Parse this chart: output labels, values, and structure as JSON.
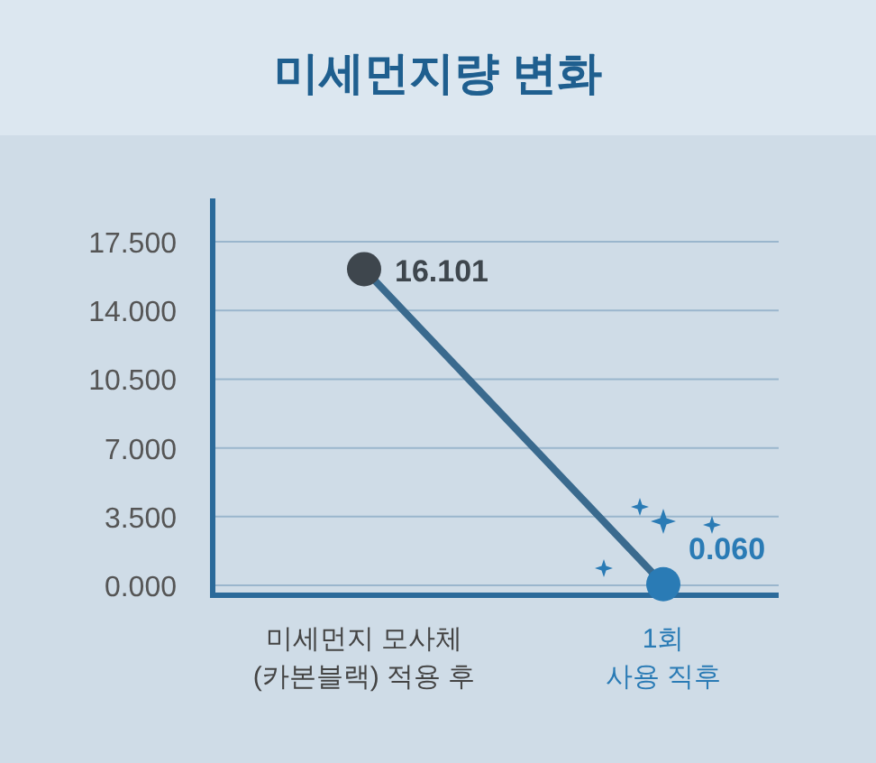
{
  "chart_data": {
    "type": "line",
    "title": "미세먼지량 변화",
    "categories": [
      "미세먼지 모사체\n(카본블랙) 적용 후",
      "1회\n사용 직후"
    ],
    "series": [
      {
        "color": "#3a6a8e",
        "colors": [
          "#3e464d",
          "#2a7bb5"
        ],
        "values": [
          16.101,
          0.06
        ],
        "value_labels": [
          "16.101",
          "0.060"
        ]
      }
    ],
    "ylim": [
      -0.5,
      19.7
    ],
    "yticks": [
      {
        "value": 0,
        "label": "0.000"
      },
      {
        "value": 3.5,
        "label": "3.500"
      },
      {
        "value": 7,
        "label": "7.000"
      },
      {
        "value": 10.5,
        "label": "10.500"
      },
      {
        "value": 14,
        "label": "14.000"
      },
      {
        "value": 17.5,
        "label": "17.500"
      }
    ],
    "grid": "y",
    "marker": "circle",
    "line_style": "solid"
  }
}
